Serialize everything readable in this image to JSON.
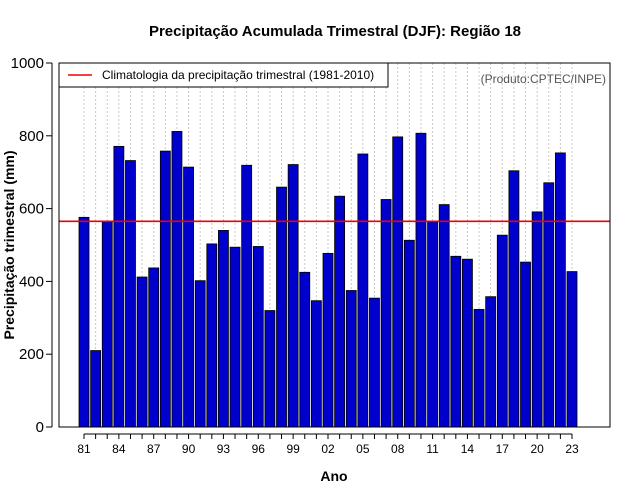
{
  "chart_data": {
    "type": "bar",
    "title": "Precipitação Acumulada Trimestral (DJF): Região 18",
    "xlabel": "Ano",
    "ylabel": "Precipitação trimestral (mm)",
    "credit": "(Produto:CPTEC/INPE)",
    "ylim": [
      0,
      1000
    ],
    "yticks": [
      0,
      200,
      400,
      600,
      800,
      1000
    ],
    "xtick_labels": [
      "81",
      "84",
      "87",
      "90",
      "93",
      "96",
      "99",
      "02",
      "05",
      "08",
      "11",
      "14",
      "17",
      "20",
      "23"
    ],
    "categories": [
      "1981",
      "1982",
      "1983",
      "1984",
      "1985",
      "1986",
      "1987",
      "1988",
      "1989",
      "1990",
      "1991",
      "1992",
      "1993",
      "1994",
      "1995",
      "1996",
      "1997",
      "1998",
      "1999",
      "2000",
      "2001",
      "2002",
      "2003",
      "2004",
      "2005",
      "2006",
      "2007",
      "2008",
      "2009",
      "2010",
      "2011",
      "2012",
      "2013",
      "2014",
      "2015",
      "2016",
      "2017",
      "2018",
      "2019",
      "2020",
      "2021",
      "2022",
      "2023"
    ],
    "values": [
      576,
      210,
      565,
      771,
      732,
      412,
      437,
      758,
      812,
      714,
      402,
      503,
      540,
      494,
      719,
      496,
      320,
      659,
      721,
      425,
      347,
      477,
      634,
      375,
      750,
      354,
      625,
      797,
      513,
      807,
      564,
      611,
      469,
      461,
      323,
      358,
      527,
      704,
      453,
      591,
      671,
      753,
      427
    ],
    "reference_line": {
      "label": "Climatologia da precipitação trimestral (1981-2010)",
      "value": 565,
      "color": "#ee0000"
    },
    "legend_position": "top-left",
    "grid": "vertical dotted",
    "colors": {
      "bar_fill": "#0000cd",
      "bar_edge": "#000000",
      "grid": "#c8c8c8"
    }
  }
}
